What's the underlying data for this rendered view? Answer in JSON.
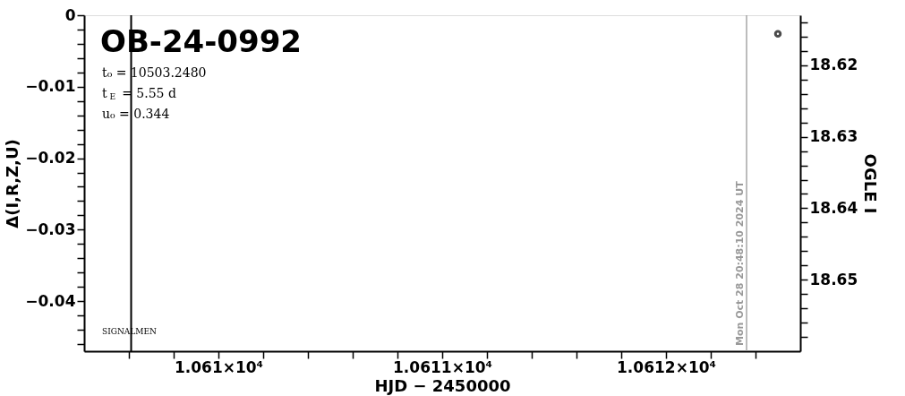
{
  "chart_data": {
    "type": "scatter",
    "title": "OB-24-0992",
    "xlabel": "HJD − 2450000",
    "ylabel": "Δ(I,R,Z,U)",
    "y2label": "OGLE I",
    "annotations": [
      "t₀ = 10503.2480",
      "t$_{E}$ = 5.55 d",
      "u₀ = 0.344",
      "SIGNALMEN",
      "Mon Oct 28 20:48:10 2024 UT"
    ],
    "series": [
      {
        "axis": "y2",
        "color": "#000000",
        "x": [
          10612.5
        ],
        "values": [
          18.6156
        ]
      }
    ],
    "marker": "circle",
    "grid": false,
    "xlim": [
      10609.4,
      10612.6
    ],
    "xticks": [
      {
        "value": 10609.6,
        "label": null
      },
      {
        "value": 10609.8,
        "label": null
      },
      {
        "value": 10610,
        "label": "1.061×10⁴"
      },
      {
        "value": 10610.2,
        "label": null
      },
      {
        "value": 10610.4,
        "label": null
      },
      {
        "value": 10610.6,
        "label": null
      },
      {
        "value": 10610.8,
        "label": null
      },
      {
        "value": 10611,
        "label": "1.0611×10⁴"
      },
      {
        "value": 10611.2,
        "label": null
      },
      {
        "value": 10611.4,
        "label": null
      },
      {
        "value": 10611.6,
        "label": null
      },
      {
        "value": 10611.8,
        "label": null
      },
      {
        "value": 10612,
        "label": "1.0612×10⁴"
      },
      {
        "value": 10612.2,
        "label": null
      },
      {
        "value": 10612.4,
        "label": null
      }
    ],
    "ylim": [
      -0.047,
      0
    ],
    "yticks": [
      0,
      {
        "value": -0.002,
        "label": null
      },
      {
        "value": -0.004,
        "label": null
      },
      {
        "value": -0.006,
        "label": null
      },
      {
        "value": -0.008,
        "label": null
      },
      -0.01,
      {
        "value": -0.012,
        "label": null
      },
      {
        "value": -0.014,
        "label": null
      },
      {
        "value": -0.016,
        "label": null
      },
      {
        "value": -0.018,
        "label": null
      },
      -0.02,
      {
        "value": -0.022,
        "label": null
      },
      {
        "value": -0.024,
        "label": null
      },
      {
        "value": -0.026,
        "label": null
      },
      {
        "value": -0.028,
        "label": null
      },
      -0.03,
      {
        "value": -0.032,
        "label": null
      },
      {
        "value": -0.034,
        "label": null
      },
      {
        "value": -0.036,
        "label": null
      },
      {
        "value": -0.038,
        "label": null
      },
      -0.04,
      {
        "value": -0.042,
        "label": null
      },
      {
        "value": -0.044,
        "label": null
      },
      {
        "value": -0.046,
        "label": null
      }
    ],
    "y2lim": [
      18.66,
      18.613
    ],
    "y2ticks": [
      {
        "value": 18.614,
        "label": null
      },
      {
        "value": 18.616,
        "label": null
      },
      {
        "value": 18.618,
        "label": null
      },
      18.62,
      {
        "value": 18.622,
        "label": null
      },
      {
        "value": 18.624,
        "label": null
      },
      {
        "value": 18.626,
        "label": null
      },
      {
        "value": 18.628,
        "label": null
      },
      18.63,
      {
        "value": 18.632,
        "label": null
      },
      {
        "value": 18.634,
        "label": null
      },
      {
        "value": 18.636,
        "label": null
      },
      {
        "value": 18.638,
        "label": null
      },
      18.64,
      {
        "value": 18.642,
        "label": null
      },
      {
        "value": 18.644,
        "label": null
      },
      {
        "value": 18.646,
        "label": null
      },
      {
        "value": 18.648,
        "label": null
      },
      18.65,
      {
        "value": 18.652,
        "label": null
      },
      {
        "value": 18.654,
        "label": null
      },
      {
        "value": 18.656,
        "label": null
      },
      {
        "value": 18.658,
        "label": null
      }
    ],
    "ref_lines": [
      {
        "axis": "x",
        "value": 10609.61,
        "label": null,
        "color": "#000000"
      },
      {
        "axis": "x",
        "value": 10612.36,
        "label": null,
        "color": "#999999"
      }
    ]
  }
}
